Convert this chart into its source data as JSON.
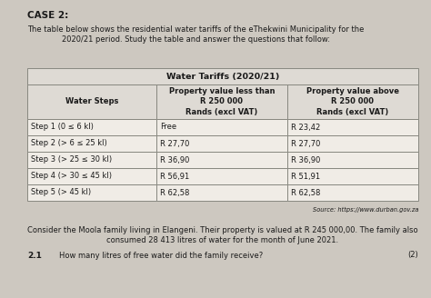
{
  "case_title": "CASE 2:",
  "intro_text": "The table below shows the residential water tariffs of the eThekwini Municipality for the\n2020/21 period. Study the table and answer the questions that follow:",
  "table_title": "Water Tariffs (2020/21)",
  "col_headers": [
    "Water Steps",
    "Property value less than\nR 250 000\nRands (excl VAT)",
    "Property value above\nR 250 000\nRands (excl VAT)"
  ],
  "rows": [
    [
      "Step 1 (0 ≤ 6 kl)",
      "Free",
      "R 23,42"
    ],
    [
      "Step 2 (> 6 ≤ 25 kl)",
      "R 27,70",
      "R 27,70"
    ],
    [
      "Step 3 (> 25 ≤ 30 kl)",
      "R 36,90",
      "R 36,90"
    ],
    [
      "Step 4 (> 30 ≤ 45 kl)",
      "R 56,91",
      "R 51,91"
    ],
    [
      "Step 5 (> 45 kl)",
      "R 62,58",
      "R 62,58"
    ]
  ],
  "source_text": "Source: https://www.durban.gov.za",
  "bottom_text": "Consider the Moola family living in Elangeni. Their property is valued at R 245 000,00. The family also\nconsumed 28 413 litres of water for the month of June 2021.",
  "question_num": "2.1",
  "question_text": "How many litres of free water did the family receive?",
  "question_marks": "(2)",
  "bg_color": "#cdc8c0",
  "table_bg": "#f0ece6",
  "header_bg": "#dedad4",
  "border_color": "#888880",
  "text_color": "#1a1a1a",
  "font_size_table_title": 6.8,
  "font_size_col_header": 6.0,
  "font_size_data": 6.0,
  "font_size_body": 6.0,
  "font_size_case": 7.5
}
